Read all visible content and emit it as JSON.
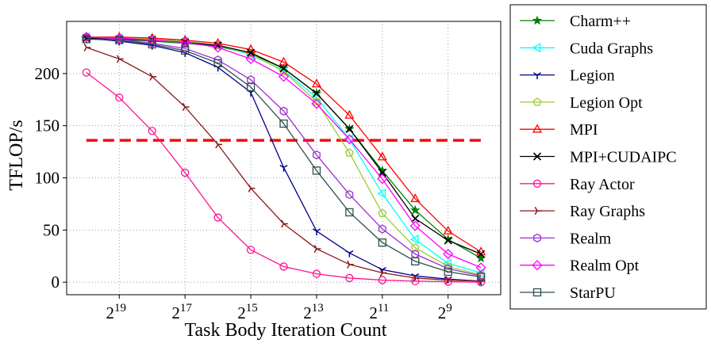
{
  "chart_data": {
    "type": "line",
    "title": "",
    "xlabel": "Task Body Iteration Count",
    "ylabel": "TFLOP/s",
    "x_exponents": [
      20,
      19,
      18,
      17,
      16,
      15,
      14,
      13,
      12,
      11,
      10,
      9,
      8
    ],
    "x_tick_exponents": [
      19,
      17,
      15,
      13,
      11,
      9
    ],
    "x_tick_base": "2",
    "ylim": [
      -12,
      250
    ],
    "y_ticks": [
      0,
      50,
      100,
      150,
      200
    ],
    "grid": true,
    "reference_line": {
      "value": 136,
      "color": "#ff0000",
      "style": "dashed"
    },
    "legend_position": "right-outside",
    "series": [
      {
        "name": "Charm++",
        "color": "#008000",
        "marker": "star",
        "values": [
          234,
          233,
          231,
          229,
          226,
          219,
          205,
          181,
          147,
          107,
          69,
          41,
          23
        ]
      },
      {
        "name": "Cuda Graphs",
        "color": "#00ffff",
        "marker": "triangle-left",
        "values": [
          235,
          234,
          233,
          231,
          227,
          218,
          203,
          177,
          137,
          85,
          41,
          18,
          9
        ]
      },
      {
        "name": "Legion",
        "color": "#00008b",
        "marker": "tri-down",
        "values": [
          234,
          231,
          227,
          220,
          206,
          182,
          110,
          49,
          28,
          12,
          6,
          3,
          1
        ]
      },
      {
        "name": "Legion Opt",
        "color": "#9acd32",
        "marker": "pentagon",
        "values": [
          235,
          234,
          233,
          231,
          227,
          219,
          202,
          173,
          124,
          66,
          33,
          15,
          7
        ]
      },
      {
        "name": "MPI",
        "color": "#ff0000",
        "marker": "triangle-up",
        "values": [
          235,
          235,
          234,
          232,
          229,
          223,
          211,
          190,
          160,
          120,
          80,
          49,
          29
        ]
      },
      {
        "name": "MPI+CUDAIPC",
        "color": "#000000",
        "marker": "x",
        "values": [
          234,
          233,
          232,
          230,
          227,
          220,
          205,
          181,
          147,
          105,
          61,
          40,
          27
        ]
      },
      {
        "name": "Ray Actor",
        "color": "#ff1493",
        "marker": "circle",
        "values": [
          201,
          177,
          145,
          105,
          62,
          31,
          15,
          8,
          4,
          2,
          1,
          0.5,
          0
        ]
      },
      {
        "name": "Ray Graphs",
        "color": "#8b1a1a",
        "marker": "tri-right",
        "values": [
          225,
          214,
          197,
          168,
          132,
          90,
          56,
          32,
          17,
          9,
          4,
          2,
          1
        ]
      },
      {
        "name": "Realm",
        "color": "#9932cc",
        "marker": "hexagon",
        "values": [
          235,
          233,
          229,
          224,
          213,
          194,
          164,
          122,
          84,
          51,
          27,
          13,
          6
        ]
      },
      {
        "name": "Realm Opt",
        "color": "#ff00ff",
        "marker": "diamond",
        "values": [
          235,
          234,
          232,
          230,
          225,
          214,
          197,
          171,
          137,
          99,
          54,
          27,
          14
        ]
      },
      {
        "name": "StarPU",
        "color": "#2f4f4f",
        "marker": "square",
        "values": [
          233,
          232,
          228,
          222,
          210,
          187,
          152,
          107,
          67,
          38,
          20,
          10,
          5
        ]
      }
    ]
  }
}
